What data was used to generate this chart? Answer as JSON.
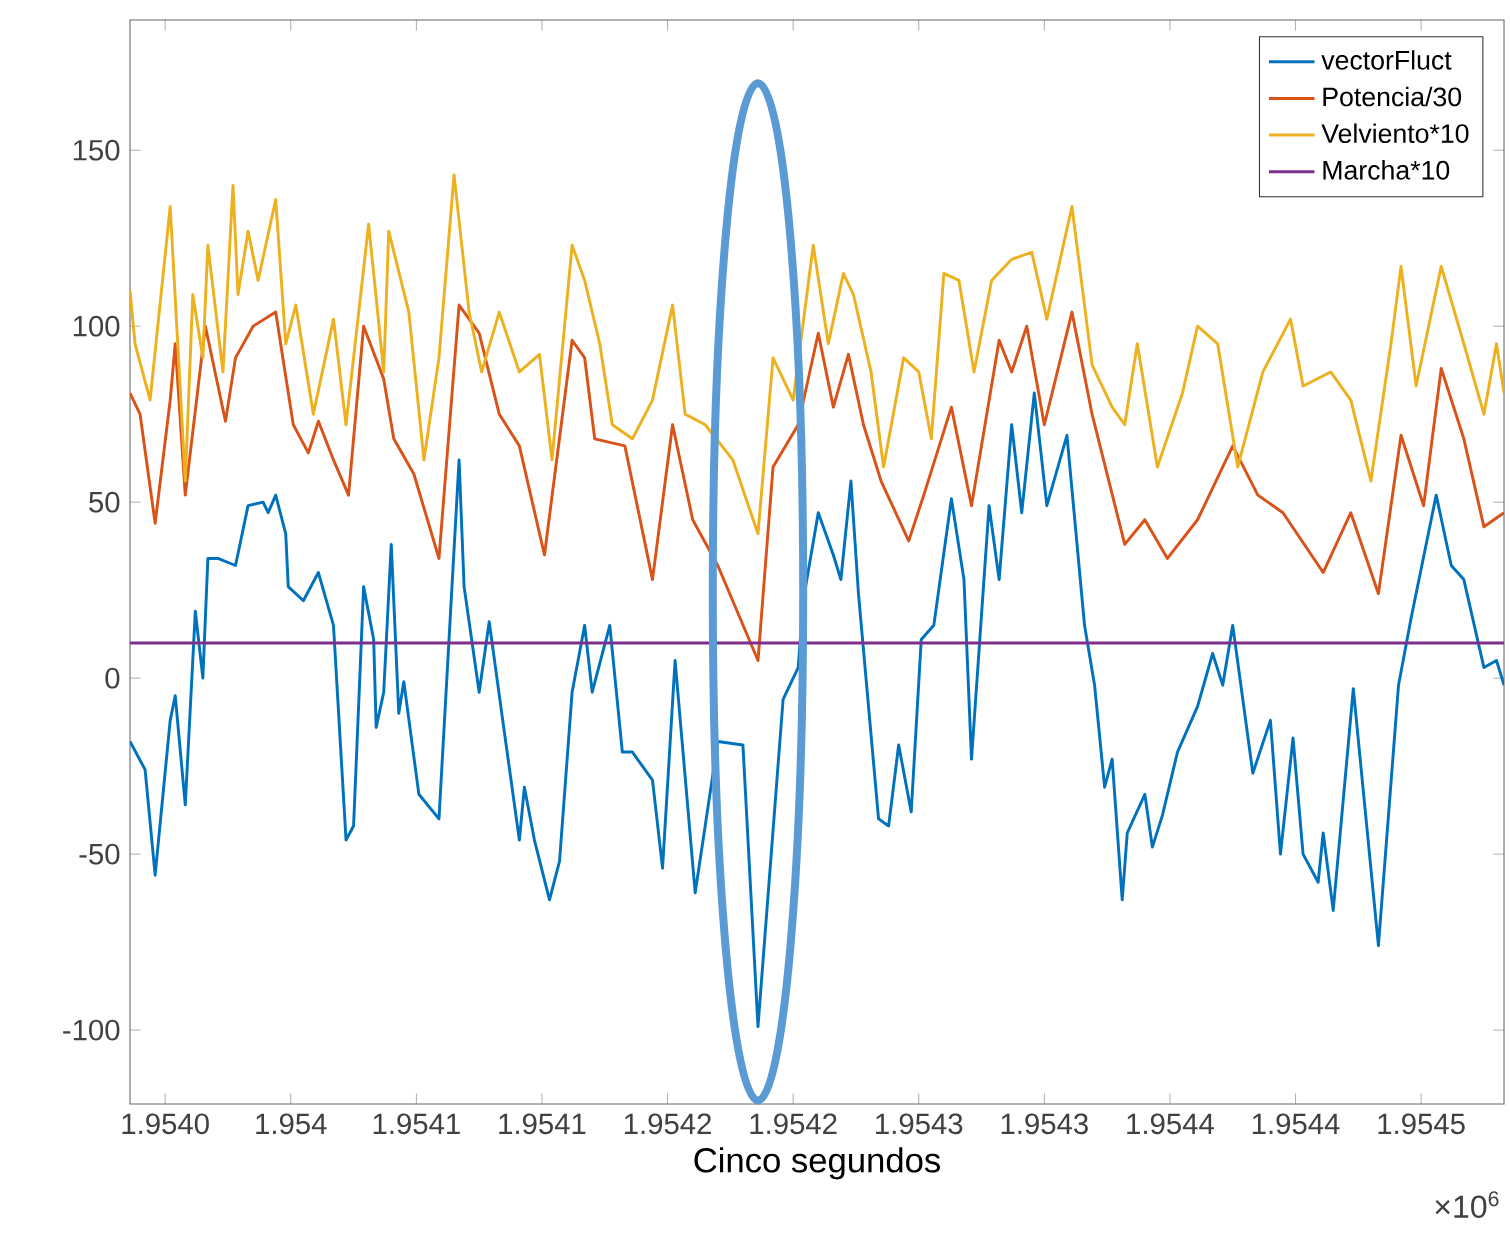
{
  "chart_data": {
    "type": "line",
    "xlabel": "Cinco segundos",
    "annotations": [
      "×10$^{6}$"
    ],
    "xlim": [
      1.953936,
      1.954483
    ],
    "ylim": [
      -121,
      187
    ],
    "xticks": [
      {
        "value": 1.95395,
        "label": "1.9540"
      },
      {
        "value": 1.954,
        "label": "1.954"
      },
      {
        "value": 1.95405,
        "label": "1.9541"
      },
      {
        "value": 1.9541,
        "label": "1.9541"
      },
      {
        "value": 1.95415,
        "label": "1.9542"
      },
      {
        "value": 1.9542,
        "label": "1.9542"
      },
      {
        "value": 1.95425,
        "label": "1.9543"
      },
      {
        "value": 1.9543,
        "label": "1.9543"
      },
      {
        "value": 1.95435,
        "label": "1.9544"
      },
      {
        "value": 1.9544,
        "label": "1.9544"
      },
      {
        "value": 1.95445,
        "label": "1.9545"
      }
    ],
    "yticks": [
      -100,
      -50,
      0,
      50,
      100,
      150
    ],
    "legend": "top right",
    "series": [
      {
        "name": "vectorFluct",
        "color": "#0072bd",
        "x": [
          1.953936,
          1.953942,
          1.953946,
          1.953952,
          1.953954,
          1.953958,
          1.953962,
          1.953965,
          1.953967,
          1.953971,
          1.953978,
          1.953983,
          1.953989,
          1.953991,
          1.953994,
          1.953998,
          1.953999,
          1.954005,
          1.954011,
          1.954017,
          1.954022,
          1.954025,
          1.954029,
          1.954033,
          1.954034,
          1.954037,
          1.95404,
          1.954043,
          1.954045,
          1.954051,
          1.954059,
          1.954067,
          1.954069,
          1.954075,
          1.954079,
          1.954084,
          1.954091,
          1.954093,
          1.954097,
          1.954103,
          1.954107,
          1.954112,
          1.954117,
          1.95412,
          1.954127,
          1.954132,
          1.954136,
          1.954144,
          1.954148,
          1.954153,
          1.954161,
          1.95417,
          1.95418,
          1.954186,
          1.954196,
          1.954202,
          1.954204,
          1.95421,
          1.954216,
          1.954219,
          1.954223,
          1.954226,
          1.954234,
          1.954238,
          1.954242,
          1.954247,
          1.954251,
          1.954256,
          1.954263,
          1.954268,
          1.954271,
          1.954278,
          1.954282,
          1.954287,
          1.954291,
          1.954296,
          1.954301,
          1.954309,
          1.954316,
          1.95432,
          1.954324,
          1.954327,
          1.954331,
          1.954333,
          1.95434,
          1.954343,
          1.954347,
          1.954353,
          1.954361,
          1.954367,
          1.954371,
          1.954375,
          1.954383,
          1.95439,
          1.954394,
          1.954399,
          1.954403,
          1.954409,
          1.954411,
          1.954415,
          1.954423,
          1.954433,
          1.954441,
          1.954446,
          1.954456,
          1.954462,
          1.954467,
          1.954475,
          1.95448,
          1.954483
        ],
        "values": [
          -18,
          -26,
          -56,
          -12,
          -5,
          -36,
          19,
          0,
          34,
          34,
          32,
          49,
          50,
          47,
          52,
          41,
          26,
          22,
          30,
          15,
          -46,
          -42,
          26,
          11,
          -14,
          -4,
          38,
          -10,
          -1,
          -33,
          -40,
          62,
          26,
          -4,
          16,
          -10,
          -46,
          -31,
          -46,
          -63,
          -52,
          -4,
          15,
          -4,
          15,
          -21,
          -21,
          -29,
          -54,
          5,
          -61,
          -18,
          -19,
          -99,
          -6,
          3,
          22,
          47,
          35,
          28,
          56,
          24,
          -40,
          -42,
          -19,
          -38,
          11,
          15,
          51,
          28,
          -23,
          49,
          28,
          72,
          47,
          81,
          49,
          69,
          15,
          -2,
          -31,
          -23,
          -63,
          -44,
          -33,
          -48,
          -39,
          -21,
          -8,
          7,
          -2,
          15,
          -27,
          -12,
          -50,
          -17,
          -50,
          -58,
          -44,
          -66,
          -3,
          -76,
          -2,
          17,
          52,
          32,
          28,
          3,
          5,
          -2
        ]
      },
      {
        "name": "Potencia/30",
        "color": "#d95319",
        "x": [
          1.953936,
          1.95394,
          1.953946,
          1.953952,
          1.953954,
          1.953958,
          1.953966,
          1.953974,
          1.953978,
          1.953985,
          1.953994,
          1.954001,
          1.954007,
          1.954011,
          1.954017,
          1.954023,
          1.954029,
          1.954037,
          1.954041,
          1.954049,
          1.954059,
          1.954067,
          1.954075,
          1.954083,
          1.954091,
          1.954101,
          1.954112,
          1.954117,
          1.954121,
          1.954133,
          1.954144,
          1.954152,
          1.95416,
          1.95417,
          1.954186,
          1.954192,
          1.954202,
          1.95421,
          1.954216,
          1.954222,
          1.954228,
          1.954235,
          1.954246,
          1.954252,
          1.954263,
          1.954271,
          1.954282,
          1.954287,
          1.954293,
          1.9543,
          1.954311,
          1.954319,
          1.954332,
          1.95434,
          1.954349,
          1.954361,
          1.954375,
          1.954385,
          1.954395,
          1.954411,
          1.954422,
          1.954433,
          1.954442,
          1.954451,
          1.954458,
          1.954467,
          1.954475,
          1.954483
        ],
        "values": [
          81,
          75,
          44,
          79,
          95,
          52,
          100,
          73,
          91,
          100,
          104,
          72,
          64,
          73,
          62,
          52,
          100,
          85,
          68,
          58,
          34,
          106,
          98,
          75,
          66,
          35,
          96,
          91,
          68,
          66,
          28,
          72,
          45,
          32,
          5,
          60,
          72,
          98,
          77,
          92,
          72,
          56,
          39,
          52,
          77,
          49,
          96,
          87,
          100,
          72,
          104,
          75,
          38,
          45,
          34,
          45,
          66,
          52,
          47,
          30,
          47,
          24,
          69,
          49,
          88,
          68,
          43,
          47
        ]
      },
      {
        "name": "Velviento*10",
        "color": "#edb120",
        "x": [
          1.953936,
          1.953938,
          1.953944,
          1.953952,
          1.953958,
          1.953961,
          1.953965,
          1.953967,
          1.953973,
          1.953977,
          1.953979,
          1.953983,
          1.953987,
          1.953994,
          1.953998,
          1.954002,
          1.954009,
          1.954017,
          1.954022,
          1.954031,
          1.954037,
          1.954039,
          1.954047,
          1.954053,
          1.954059,
          1.954065,
          1.954071,
          1.954076,
          1.954083,
          1.954091,
          1.954099,
          1.954104,
          1.954112,
          1.954117,
          1.954123,
          1.954128,
          1.954136,
          1.954144,
          1.954152,
          1.954157,
          1.954165,
          1.954176,
          1.954186,
          1.954192,
          1.9542,
          1.954208,
          1.954214,
          1.95422,
          1.954224,
          1.954231,
          1.954236,
          1.954244,
          1.95425,
          1.954255,
          1.95426,
          1.954266,
          1.954272,
          1.954279,
          1.954287,
          1.954295,
          1.954301,
          1.954311,
          1.954319,
          1.954327,
          1.954332,
          1.954337,
          1.954345,
          1.954355,
          1.954361,
          1.954369,
          1.954377,
          1.954387,
          1.954398,
          1.954403,
          1.954414,
          1.954422,
          1.95443,
          1.954438,
          1.954442,
          1.954448,
          1.954458,
          1.954467,
          1.954475,
          1.95448,
          1.954483
        ],
        "values": [
          110,
          95,
          79,
          134,
          56,
          109,
          91,
          123,
          87,
          140,
          109,
          127,
          113,
          136,
          95,
          106,
          75,
          102,
          72,
          129,
          87,
          127,
          104,
          62,
          91,
          143,
          104,
          87,
          104,
          87,
          92,
          62,
          123,
          113,
          95,
          72,
          68,
          79,
          106,
          75,
          72,
          62,
          41,
          91,
          79,
          123,
          95,
          115,
          109,
          87,
          60,
          91,
          87,
          68,
          115,
          113,
          87,
          113,
          119,
          121,
          102,
          134,
          89,
          77,
          72,
          95,
          60,
          81,
          100,
          95,
          60,
          87,
          102,
          83,
          87,
          79,
          56,
          95,
          117,
          83,
          117,
          95,
          75,
          95,
          81
        ]
      },
      {
        "name": "Marcha*10",
        "color": "#7e2f8e",
        "x": [
          1.953936,
          1.954483
        ],
        "values": [
          10,
          10
        ]
      }
    ]
  }
}
